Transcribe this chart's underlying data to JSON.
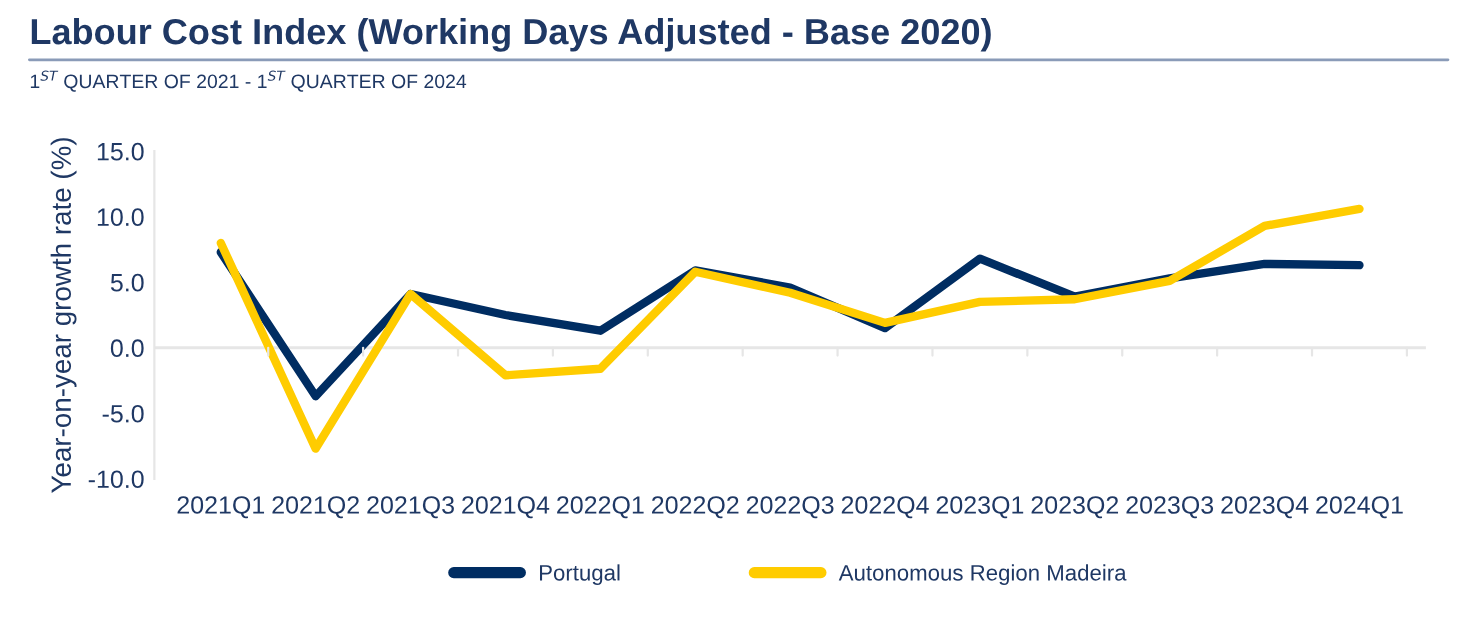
{
  "chart_data": {
    "type": "line",
    "title": "Labour Cost Index (Working Days Adjusted - Base 2020)",
    "subtitle": "1$^{ST}$ QUARTER OF 2021 - 1$^{ST}$ QUARTER OF 2024",
    "ylabel": "Year-on-year growth rate (%)",
    "categories": [
      "2021Q1",
      "2021Q2",
      "2021Q3",
      "2021Q4",
      "2022Q1",
      "2022Q2",
      "2022Q3",
      "2022Q4",
      "2023Q1",
      "2023Q2",
      "2023Q3",
      "2023Q4",
      "2024Q1"
    ],
    "series": [
      {
        "name": "Portugal",
        "color": "#002d62",
        "values": [
          7.3,
          -3.7,
          4.1,
          2.5,
          1.3,
          5.9,
          4.6,
          1.5,
          6.8,
          3.9,
          5.3,
          6.4,
          6.3
        ]
      },
      {
        "name": "Autonomous Region Madeira",
        "color": "#ffcc00",
        "values": [
          8.0,
          -7.7,
          4.1,
          -2.1,
          -1.6,
          5.8,
          4.2,
          1.9,
          3.5,
          3.7,
          5.1,
          9.3,
          10.6
        ]
      }
    ],
    "ylim": [
      -10,
      15
    ],
    "yticks": [
      {
        "value": -10,
        "label": "-10.0"
      },
      {
        "value": -5,
        "label": "-5.0"
      },
      {
        "value": 0,
        "label": "0.0"
      },
      {
        "value": 5,
        "label": "5.0"
      },
      {
        "value": 10,
        "label": "10.0"
      },
      {
        "value": 15,
        "label": "15.0"
      }
    ],
    "ref_lines": [
      {
        "axis": "y",
        "value": 0,
        "color": "#e6e6e6"
      }
    ],
    "grid": false,
    "legend": "bottom",
    "marker": "none",
    "line_style": "solid"
  }
}
